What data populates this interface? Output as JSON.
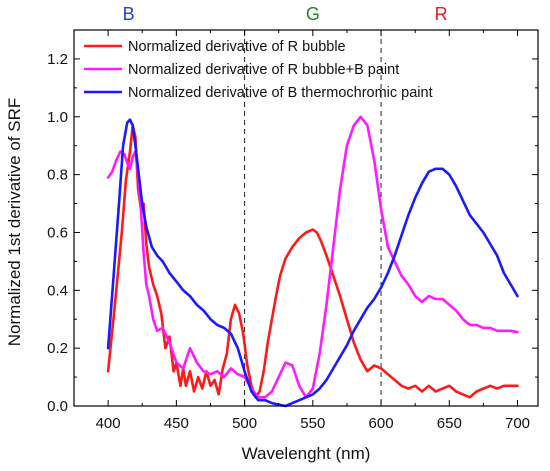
{
  "chart_data": {
    "type": "line",
    "title": "",
    "xlabel": "Wavelenght (nm)",
    "ylabel": "Normalized 1st derivative of SRF",
    "xlim": [
      375,
      715
    ],
    "ylim": [
      0.0,
      1.3
    ],
    "xticks": [
      400,
      450,
      500,
      550,
      600,
      650,
      700
    ],
    "yticks": [
      0.0,
      0.2,
      0.4,
      0.6,
      0.8,
      1.0,
      1.2
    ],
    "xtick_labels": [
      "400",
      "450",
      "500",
      "550",
      "600",
      "650",
      "700"
    ],
    "ytick_labels": [
      "0.0",
      "0.2",
      "0.4",
      "0.6",
      "0.8",
      "1.0",
      "1.2"
    ],
    "grid": false,
    "legend_position": "top-center",
    "vlines": [
      500,
      600
    ],
    "band_labels": [
      {
        "text": "B",
        "x": 415,
        "color": "#1f3fd6"
      },
      {
        "text": "G",
        "x": 550,
        "color": "#1a8a1a"
      },
      {
        "text": "R",
        "x": 644,
        "color": "#e02020"
      }
    ],
    "series": [
      {
        "name": "Normalized derivative of R bubble",
        "color": "#ff1a1a",
        "x": [
          400,
          405,
          410,
          413,
          416,
          418,
          420,
          422,
          424,
          426,
          428,
          430,
          433,
          436,
          439,
          442,
          445,
          448,
          450,
          453,
          455,
          457,
          460,
          463,
          466,
          469,
          472,
          475,
          478,
          481,
          484,
          487,
          490,
          493,
          496,
          499,
          502,
          505,
          508,
          511,
          514,
          517,
          520,
          523,
          526,
          530,
          535,
          540,
          545,
          550,
          553,
          556,
          560,
          565,
          570,
          575,
          580,
          585,
          590,
          595,
          600,
          605,
          610,
          615,
          620,
          625,
          630,
          635,
          640,
          645,
          650,
          655,
          660,
          665,
          670,
          675,
          680,
          685,
          690,
          695,
          700
        ],
        "y": [
          0.12,
          0.35,
          0.6,
          0.78,
          0.88,
          0.97,
          0.93,
          0.75,
          0.68,
          0.7,
          0.56,
          0.48,
          0.42,
          0.38,
          0.32,
          0.2,
          0.24,
          0.12,
          0.15,
          0.07,
          0.13,
          0.07,
          0.12,
          0.05,
          0.1,
          0.06,
          0.12,
          0.07,
          0.09,
          0.04,
          0.13,
          0.18,
          0.3,
          0.35,
          0.32,
          0.25,
          0.14,
          0.07,
          0.03,
          0.05,
          0.12,
          0.22,
          0.3,
          0.38,
          0.45,
          0.51,
          0.55,
          0.58,
          0.6,
          0.61,
          0.6,
          0.57,
          0.52,
          0.45,
          0.38,
          0.3,
          0.22,
          0.16,
          0.12,
          0.14,
          0.13,
          0.11,
          0.09,
          0.07,
          0.06,
          0.07,
          0.05,
          0.07,
          0.05,
          0.06,
          0.07,
          0.05,
          0.04,
          0.03,
          0.05,
          0.06,
          0.07,
          0.06,
          0.07,
          0.07,
          0.07
        ]
      },
      {
        "name": "Normalized derivative of R bubble+B paint",
        "color": "#ff1aff",
        "x": [
          400,
          403,
          406,
          409,
          412,
          414,
          416,
          418,
          420,
          422,
          424,
          426,
          428,
          430,
          433,
          436,
          440,
          445,
          450,
          455,
          460,
          465,
          470,
          475,
          480,
          485,
          490,
          495,
          500,
          505,
          510,
          515,
          520,
          525,
          530,
          535,
          540,
          545,
          550,
          555,
          560,
          565,
          570,
          575,
          580,
          585,
          590,
          595,
          600,
          605,
          610,
          615,
          620,
          625,
          630,
          635,
          640,
          645,
          650,
          655,
          660,
          665,
          670,
          675,
          680,
          685,
          690,
          695,
          700
        ],
        "y": [
          0.79,
          0.81,
          0.85,
          0.88,
          0.87,
          0.84,
          0.82,
          0.86,
          0.88,
          0.8,
          0.68,
          0.53,
          0.42,
          0.38,
          0.3,
          0.26,
          0.27,
          0.22,
          0.15,
          0.13,
          0.2,
          0.15,
          0.12,
          0.11,
          0.12,
          0.1,
          0.13,
          0.11,
          0.1,
          0.06,
          0.03,
          0.03,
          0.05,
          0.1,
          0.15,
          0.14,
          0.07,
          0.03,
          0.06,
          0.18,
          0.35,
          0.55,
          0.75,
          0.9,
          0.97,
          1.0,
          0.97,
          0.85,
          0.68,
          0.55,
          0.5,
          0.45,
          0.42,
          0.38,
          0.36,
          0.38,
          0.37,
          0.37,
          0.35,
          0.33,
          0.3,
          0.28,
          0.28,
          0.27,
          0.27,
          0.26,
          0.26,
          0.26,
          0.255
        ]
      },
      {
        "name": "Normalized derivative of B thermochromic paint",
        "color": "#1a1aff",
        "x": [
          400,
          404,
          408,
          411,
          414,
          416,
          418,
          420,
          422,
          425,
          428,
          432,
          436,
          440,
          445,
          450,
          455,
          460,
          465,
          470,
          475,
          480,
          485,
          490,
          495,
          500,
          505,
          510,
          515,
          520,
          525,
          530,
          535,
          540,
          545,
          550,
          555,
          560,
          565,
          570,
          575,
          580,
          585,
          590,
          595,
          600,
          605,
          610,
          615,
          620,
          625,
          630,
          635,
          640,
          645,
          650,
          655,
          660,
          665,
          670,
          675,
          680,
          685,
          690,
          695,
          700
        ],
        "y": [
          0.2,
          0.45,
          0.7,
          0.9,
          0.98,
          0.99,
          0.97,
          0.9,
          0.82,
          0.7,
          0.62,
          0.55,
          0.52,
          0.5,
          0.46,
          0.43,
          0.4,
          0.38,
          0.35,
          0.33,
          0.3,
          0.28,
          0.27,
          0.25,
          0.2,
          0.12,
          0.05,
          0.02,
          0.02,
          0.01,
          0.005,
          0.0,
          0.01,
          0.02,
          0.03,
          0.04,
          0.06,
          0.09,
          0.13,
          0.17,
          0.21,
          0.26,
          0.3,
          0.34,
          0.37,
          0.41,
          0.46,
          0.52,
          0.59,
          0.66,
          0.72,
          0.77,
          0.81,
          0.82,
          0.82,
          0.8,
          0.76,
          0.71,
          0.66,
          0.63,
          0.6,
          0.56,
          0.52,
          0.46,
          0.42,
          0.38
        ]
      }
    ]
  }
}
